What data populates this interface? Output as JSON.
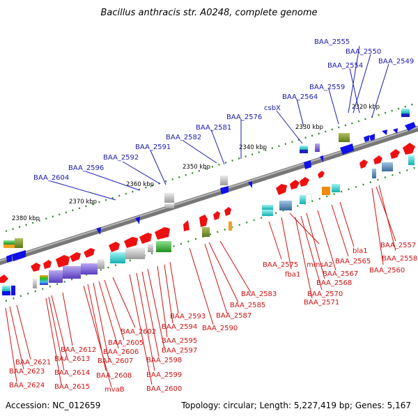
{
  "title": "Bacillus anthracis str. A0248, complete genome",
  "footer": {
    "accession": "Accession: NC_012659",
    "summary": "Topology: circular; Length: 5,227,419 bp; Genes: 5,167"
  },
  "scale_ticks": [
    "2320 kbp",
    "2330 kbp",
    "2340 kbp",
    "2350 kbp",
    "2360 kbp",
    "2370 kbp",
    "2380 kbp"
  ],
  "top_strand_labels": [
    "BAA_2555",
    "BAA_2550",
    "BAA_2554",
    "BAA_2549",
    "BAA_2559",
    "BAA_2564",
    "csbX",
    "BAA_2576",
    "BAA_2581",
    "BAA_2582",
    "BAA_2591",
    "BAA_2592",
    "BAA_2596",
    "BAA_2604"
  ],
  "bottom_strand_labels": [
    "BAA_2575",
    "fba1",
    "mmsA2",
    "BAA_2565",
    "bla1",
    "BAA_2557",
    "BAA_2558",
    "BAA_2560",
    "BAA_2567",
    "BAA_2568",
    "BAA_2570",
    "BAA_2571",
    "BAA_2583",
    "BAA_2585",
    "BAA_2587",
    "BAA_2590",
    "BAA_2593",
    "BAA_2594",
    "BAA_2595",
    "BAA_2597",
    "BAA_2598",
    "BAA_2599",
    "BAA_2600",
    "BAA_2602",
    "BAA_2605",
    "BAA_2606",
    "BAA_2607",
    "BAA_2608",
    "mvaB",
    "BAA_2612",
    "BAA_2613",
    "BAA_2614",
    "BAA_2615",
    "BAA_2621",
    "BAA_2623",
    "BAA_2624"
  ],
  "colors": {
    "top_label": "#1a1ab0",
    "bottom_label": "#d01010",
    "forward_gene": "#1010e8",
    "reverse_gene": "#ee1010",
    "backbone": "#888888",
    "tick_dot": "#2e8b2e"
  }
}
